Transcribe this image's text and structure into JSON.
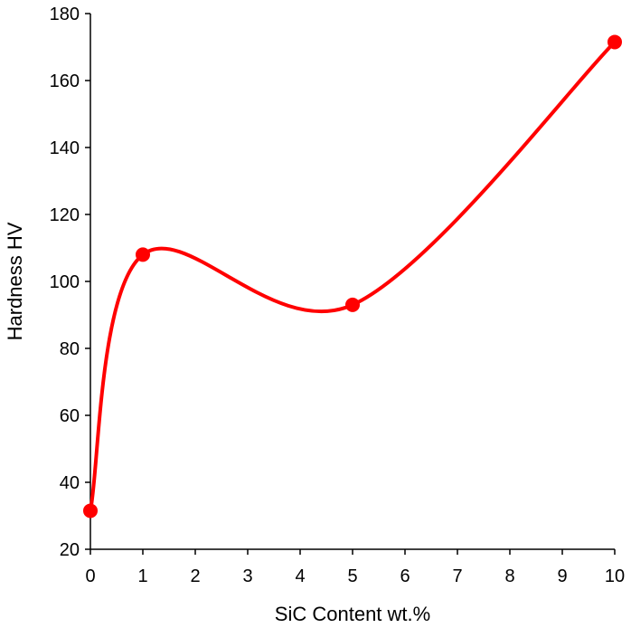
{
  "chart_data": {
    "type": "scatter",
    "title": "",
    "xlabel": "SiC Content wt.%",
    "ylabel": "Hardness HV",
    "xlim": [
      0,
      10
    ],
    "ylim": [
      20,
      180
    ],
    "x_ticks": [
      "0",
      "1",
      "2",
      "3",
      "4",
      "5",
      "6",
      "7",
      "8",
      "9",
      "10"
    ],
    "y_ticks": [
      "20",
      "40",
      "60",
      "80",
      "100",
      "120",
      "140",
      "160",
      "180"
    ],
    "grid": false,
    "legend": "none",
    "smoothed_line": true,
    "series": [
      {
        "color": "#ff0000",
        "x": [
          0,
          1,
          5,
          10
        ],
        "y": [
          31.5,
          108,
          93,
          171.5
        ]
      }
    ]
  }
}
